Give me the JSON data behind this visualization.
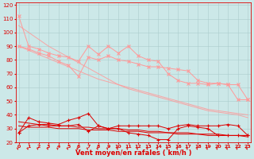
{
  "x": [
    0,
    1,
    2,
    3,
    4,
    5,
    6,
    7,
    8,
    9,
    10,
    11,
    12,
    13,
    14,
    15,
    16,
    17,
    18,
    19,
    20,
    21,
    22,
    23
  ],
  "rafales_1": [
    112,
    90,
    88,
    85,
    83,
    82,
    79,
    90,
    84,
    90,
    85,
    90,
    83,
    80,
    79,
    70,
    65,
    63,
    63,
    62,
    63,
    62,
    51,
    51
  ],
  "rafales_2": [
    90,
    88,
    85,
    83,
    79,
    76,
    68,
    82,
    80,
    83,
    80,
    79,
    77,
    75,
    75,
    74,
    73,
    72,
    65,
    63,
    63,
    62,
    62,
    51
  ],
  "trend_rafales_1": [
    105,
    100,
    95,
    90,
    86,
    82,
    78,
    74,
    70,
    66,
    62,
    59,
    57,
    55,
    53,
    51,
    49,
    47,
    45,
    43,
    42,
    41,
    40,
    38
  ],
  "trend_rafales_2": [
    90,
    87,
    84,
    81,
    78,
    75,
    72,
    69,
    66,
    64,
    62,
    60,
    58,
    56,
    54,
    52,
    50,
    48,
    46,
    44,
    43,
    42,
    41,
    40
  ],
  "mean_1": [
    27,
    38,
    35,
    34,
    33,
    36,
    38,
    41,
    32,
    30,
    32,
    32,
    32,
    32,
    32,
    30,
    32,
    33,
    32,
    32,
    32,
    33,
    32,
    25
  ],
  "mean_2": [
    27,
    32,
    33,
    32,
    32,
    32,
    33,
    28,
    32,
    30,
    30,
    27,
    26,
    25,
    22,
    22,
    30,
    32,
    31,
    30,
    25,
    25,
    25,
    25
  ],
  "trend_mean_1": [
    35,
    34,
    33,
    33,
    32,
    32,
    31,
    31,
    30,
    30,
    30,
    29,
    29,
    28,
    28,
    27,
    27,
    27,
    26,
    26,
    26,
    25,
    25,
    25
  ],
  "trend_mean_2": [
    32,
    31,
    31,
    31,
    30,
    30,
    30,
    29,
    29,
    29,
    28,
    28,
    28,
    27,
    27,
    27,
    26,
    26,
    26,
    25,
    25,
    25,
    25,
    24
  ],
  "bg_color": "#cce8e8",
  "grid_color": "#aacccc",
  "color_rafales": "#ff9999",
  "color_mean": "#dd0000",
  "xlabel": "Vent moyen/en rafales ( km/h )",
  "ylim_min": 20,
  "ylim_max": 122,
  "yticks": [
    20,
    30,
    40,
    50,
    60,
    70,
    80,
    90,
    100,
    110,
    120
  ]
}
